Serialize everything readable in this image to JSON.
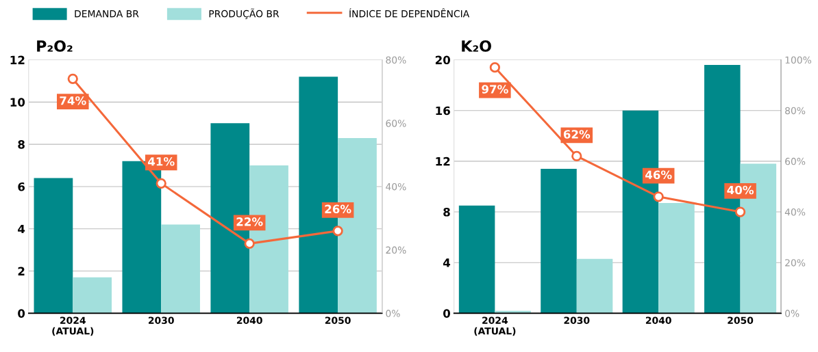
{
  "chart_data": [
    {
      "type": "bar",
      "title": "P₂O₂",
      "categories": [
        "2024\n(ATUAL)",
        "2030",
        "2040",
        "2050"
      ],
      "legend": "top",
      "grid": "y",
      "ylim": [
        0,
        12
      ],
      "yticks": [
        0,
        2,
        4,
        6,
        8,
        10,
        12
      ],
      "y2lim": [
        0,
        80
      ],
      "y2ticks": [
        {
          "value": 0,
          "label": "0%"
        },
        {
          "value": 20,
          "label": "20%"
        },
        {
          "value": 40,
          "label": "40%"
        },
        {
          "value": 60,
          "label": "60%"
        },
        {
          "value": 80,
          "label": "80%"
        }
      ],
      "series": [
        {
          "name": "DEMANDA BR",
          "color": "#00898a",
          "values": [
            6.4,
            7.2,
            9.0,
            11.2
          ]
        },
        {
          "name": "PRODUÇÃO BR",
          "color": "#a2dfdc",
          "values": [
            1.7,
            4.2,
            7.0,
            8.3
          ]
        },
        {
          "name": "ÍNDICE DE DEPENDÊNCIA",
          "type": "line",
          "axis": "y2",
          "color": "#f4683a",
          "marker": "circle",
          "values": [
            74,
            41,
            22,
            26
          ],
          "value_labels": [
            "74%",
            "41%",
            "22%",
            "26%"
          ]
        }
      ]
    },
    {
      "type": "bar",
      "title": "K₂O",
      "categories": [
        "2024\n(ATUAL)",
        "2030",
        "2040",
        "2050"
      ],
      "grid": "y",
      "ylim": [
        0,
        20
      ],
      "yticks": [
        0,
        4,
        8,
        12,
        16,
        20
      ],
      "y2lim": [
        0,
        100
      ],
      "y2ticks": [
        {
          "value": 0,
          "label": "0%"
        },
        {
          "value": 20,
          "label": "20%"
        },
        {
          "value": 40,
          "label": "40%"
        },
        {
          "value": 60,
          "label": "60%"
        },
        {
          "value": 80,
          "label": "80%"
        },
        {
          "value": 100,
          "label": "100%"
        }
      ],
      "series": [
        {
          "color": "#00898a",
          "values": [
            8.5,
            11.4,
            16.0,
            19.6
          ]
        },
        {
          "color": "#a2dfdc",
          "values": [
            0.2,
            4.3,
            8.7,
            11.8
          ]
        },
        {
          "type": "line",
          "axis": "y2",
          "color": "#f4683a",
          "marker": "circle",
          "values": [
            97,
            62,
            46,
            40
          ],
          "value_labels": [
            "97%",
            "62%",
            "46%",
            "40%"
          ]
        }
      ]
    }
  ]
}
